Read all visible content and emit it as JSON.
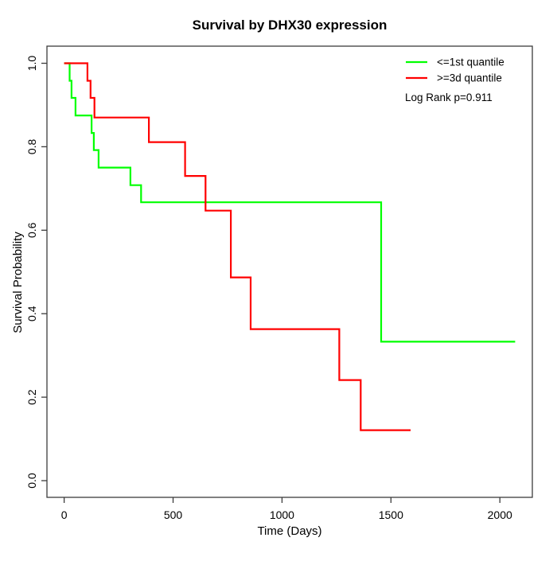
{
  "chart_data": {
    "type": "line",
    "subtype": "kaplan-meier-step",
    "title": "Survival by DHX30 expression",
    "xlabel": "Time (Days)",
    "ylabel": "Survival Probability",
    "grid": false,
    "legend_position": "top-right",
    "annotation": "Log Rank p=0.911",
    "xlim": [
      -79,
      2149
    ],
    "ylim": [
      -0.04,
      1.041
    ],
    "x_ticks": [
      {
        "v": 0,
        "label": "0"
      },
      {
        "v": 500,
        "label": "500"
      },
      {
        "v": 1000,
        "label": "1000"
      },
      {
        "v": 1500,
        "label": "1500"
      },
      {
        "v": 2000,
        "label": "2000"
      }
    ],
    "y_ticks": [
      {
        "v": 0.0,
        "label": "0.0"
      },
      {
        "v": 0.2,
        "label": "0.2"
      },
      {
        "v": 0.4,
        "label": "0.4"
      },
      {
        "v": 0.6,
        "label": "0.6"
      },
      {
        "v": 0.8,
        "label": "0.8"
      },
      {
        "v": 1.0,
        "label": "1.0"
      }
    ],
    "series": [
      {
        "name": "<=1st quantile",
        "color": "#00ff00",
        "points": [
          [
            0,
            1.0
          ],
          [
            25,
            0.958
          ],
          [
            34,
            0.917
          ],
          [
            52,
            0.875
          ],
          [
            126,
            0.833
          ],
          [
            136,
            0.792
          ],
          [
            158,
            0.75
          ],
          [
            304,
            0.708
          ],
          [
            353,
            0.667
          ],
          [
            1455,
            0.333
          ],
          [
            2070,
            0.333
          ]
        ]
      },
      {
        "name": ">=3d quantile",
        "color": "#ff0000",
        "points": [
          [
            0,
            1.0
          ],
          [
            107,
            0.958
          ],
          [
            121,
            0.917
          ],
          [
            139,
            0.87
          ],
          [
            389,
            0.811
          ],
          [
            555,
            0.73
          ],
          [
            649,
            0.647
          ],
          [
            765,
            0.487
          ],
          [
            856,
            0.363
          ],
          [
            1263,
            0.241
          ],
          [
            1361,
            0.121
          ],
          [
            1590,
            0.121
          ]
        ]
      }
    ],
    "axis_color": "#3c3c3c",
    "line_width": 2.2
  }
}
